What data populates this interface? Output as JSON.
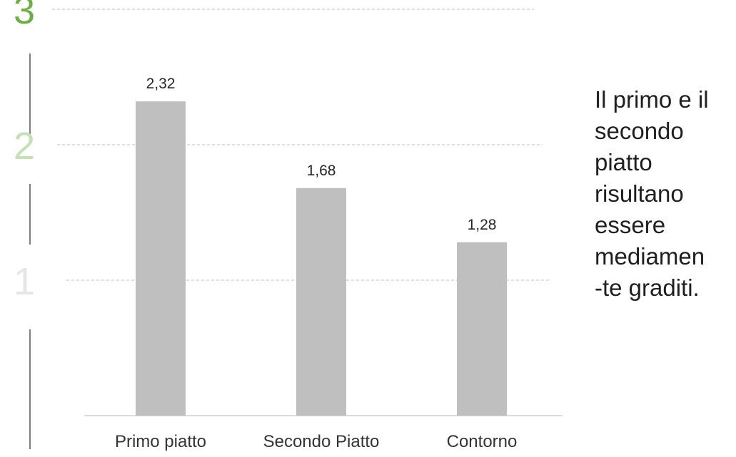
{
  "chart_data": {
    "type": "bar",
    "categories": [
      "Primo piatto",
      "Secondo Piatto",
      "Contorno"
    ],
    "values": [
      2.32,
      1.68,
      1.28
    ],
    "data_labels": [
      "2,32",
      "1,68",
      "1,28"
    ],
    "ylim": [
      0,
      3
    ],
    "yticks": [
      {
        "value": 1,
        "label": "1",
        "color": "#e6e6e6"
      },
      {
        "value": 2,
        "label": "2",
        "color": "#c5e0b4"
      },
      {
        "value": 3,
        "label": "3",
        "color": "#70ad47"
      }
    ],
    "bar_color": "#bfbfbf",
    "grid": true
  },
  "note": {
    "lines": [
      "Il primo e il",
      "secondo",
      "piatto",
      "risultano",
      "essere",
      "mediamen",
      "-te graditi."
    ]
  }
}
